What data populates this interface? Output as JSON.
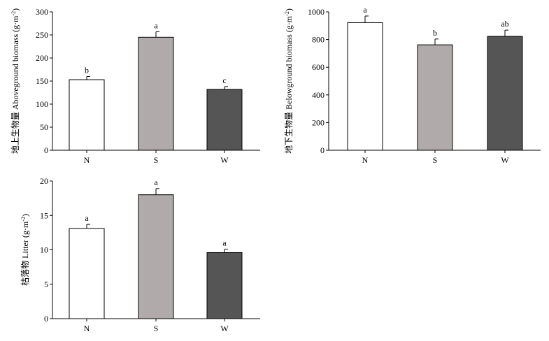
{
  "chart_data": [
    {
      "type": "bar",
      "ylabel": "地上生物量 Aboveground biomass (g·m⁻²)",
      "ylabel_cn": "地上生物量",
      "ylabel_en": "Aboveground biomass (g·m",
      "ylabel_sup": "-2",
      "ylabel_close": ")",
      "categories": [
        "N",
        "S",
        "W"
      ],
      "values": [
        153,
        245,
        132
      ],
      "errors": [
        7,
        12,
        6
      ],
      "significance": [
        "b",
        "a",
        "c"
      ],
      "bar_colors": [
        "#ffffff",
        "#b0aaaa",
        "#555555"
      ],
      "ylim": [
        0,
        300
      ],
      "yticks": [
        0,
        50,
        100,
        150,
        200,
        250,
        300
      ]
    },
    {
      "type": "bar",
      "ylabel": "地下生物量 Belowground biomass (g·m⁻²)",
      "ylabel_cn": "地下生物量",
      "ylabel_en": "Belowground biomass (g·m",
      "ylabel_sup": "-2",
      "ylabel_close": ")",
      "categories": [
        "N",
        "S",
        "W"
      ],
      "values": [
        922,
        762,
        823
      ],
      "errors": [
        48,
        42,
        45
      ],
      "significance": [
        "a",
        "b",
        "ab"
      ],
      "bar_colors": [
        "#ffffff",
        "#b0aaaa",
        "#555555"
      ],
      "ylim": [
        0,
        1000
      ],
      "yticks": [
        0,
        200,
        400,
        600,
        800,
        1000
      ]
    },
    {
      "type": "bar",
      "ylabel": "枯落物 Litter (g·m⁻²)",
      "ylabel_cn": "枯落物",
      "ylabel_en": "Litter (g·m",
      "ylabel_sup": "-2",
      "ylabel_close": ")",
      "categories": [
        "N",
        "S",
        "W"
      ],
      "values": [
        13.1,
        18.0,
        9.6
      ],
      "errors": [
        0.6,
        0.9,
        0.5
      ],
      "significance": [
        "a",
        "a",
        "a"
      ],
      "bar_colors": [
        "#ffffff",
        "#b0aaaa",
        "#555555"
      ],
      "ylim": [
        0,
        20
      ],
      "yticks": [
        0,
        5,
        10,
        15,
        20
      ]
    }
  ]
}
